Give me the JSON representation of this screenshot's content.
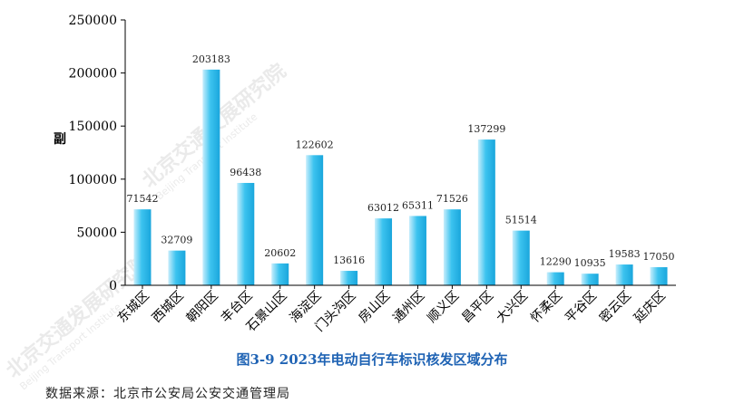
{
  "colors": {
    "bar_light": "#c8eefc",
    "bar_mid": "#3cc3ef",
    "bar_dark": "#1aa6dc",
    "axis": "#000000",
    "caption": "#1f63b4"
  },
  "watermark": {
    "text": "北京交通发展研究院",
    "subtext": "Beijing Transport Institute"
  },
  "chart_data": {
    "type": "bar",
    "title": "图3-9  2023年电动自行车标识核发区域分布",
    "ylabel": "副",
    "xlabel": "",
    "ylim": [
      0,
      250000
    ],
    "yticks": [
      0,
      50000,
      100000,
      150000,
      200000,
      250000
    ],
    "grid": false,
    "categories": [
      "东城区",
      "西城区",
      "朝阳区",
      "丰台区",
      "石景山区",
      "海淀区",
      "门头沟区",
      "房山区",
      "通州区",
      "顺义区",
      "昌平区",
      "大兴区",
      "怀柔区",
      "平谷区",
      "密云区",
      "延庆区"
    ],
    "values": [
      71542,
      32709,
      203183,
      96438,
      20602,
      122602,
      13616,
      63012,
      65311,
      71526,
      137299,
      51514,
      12290,
      10935,
      19583,
      17050
    ],
    "source": "数据来源：北京市公安局公安交通管理局"
  }
}
